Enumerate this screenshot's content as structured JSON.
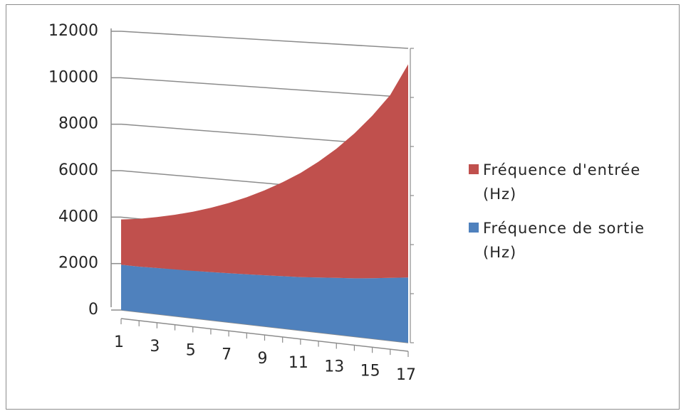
{
  "chart_data": {
    "type": "area",
    "title": "",
    "xlabel": "",
    "ylabel": "",
    "x": [
      1,
      2,
      3,
      4,
      5,
      6,
      7,
      8,
      9,
      10,
      11,
      12,
      13,
      14,
      15,
      16,
      17
    ],
    "x_tick_labels": [
      "1",
      "3",
      "5",
      "7",
      "9",
      "11",
      "13",
      "15",
      "17"
    ],
    "y_tick_labels": [
      "0",
      "2000",
      "4000",
      "6000",
      "8000",
      "10000",
      "12000"
    ],
    "ylim": [
      0,
      12000
    ],
    "stacked": true,
    "grid": true,
    "legend_position": "right",
    "series": [
      {
        "name": "Fréquence de sortie (Hz)",
        "color": "#4f81bd",
        "values": [
          1950,
          1950,
          1970,
          1990,
          2010,
          2040,
          2070,
          2100,
          2140,
          2180,
          2220,
          2280,
          2340,
          2400,
          2480,
          2570,
          2660
        ]
      },
      {
        "name": "Fréquence d'entrée (Hz)",
        "color": "#c0504d",
        "values": [
          1950,
          2050,
          2180,
          2330,
          2510,
          2720,
          2960,
          3240,
          3560,
          3920,
          4330,
          4800,
          5340,
          5960,
          6670,
          7480,
          8690
        ]
      }
    ],
    "legend": [
      {
        "line1": "Fréquence d'entrée",
        "line2": "(Hz)",
        "color": "#c0504d"
      },
      {
        "line1": "Fréquence de sortie",
        "line2": "(Hz)",
        "color": "#4f81bd"
      }
    ]
  }
}
